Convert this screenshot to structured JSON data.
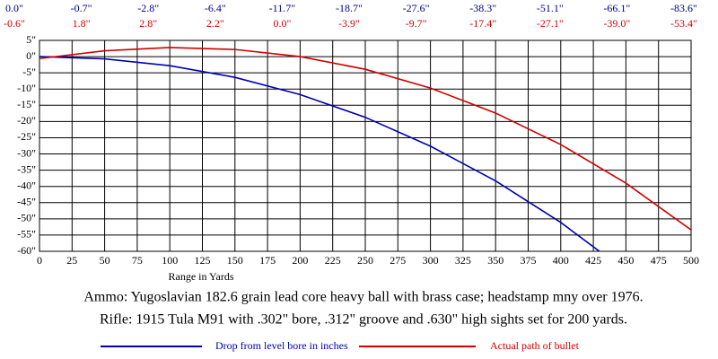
{
  "chart_data": {
    "type": "line",
    "x": [
      0,
      50,
      100,
      150,
      200,
      250,
      300,
      350,
      400,
      450,
      500
    ],
    "series": [
      {
        "name": "Drop from level bore in inches",
        "color": "#0000b0",
        "values": [
          0.0,
          -0.7,
          -2.8,
          -6.4,
          -11.7,
          -18.7,
          -27.6,
          -38.3,
          -51.1,
          -66.1,
          -83.6
        ],
        "value_labels": [
          "0.0\"",
          "-0.7\"",
          "-2.8\"",
          "-6.4\"",
          "-11.7\"",
          "-18.7\"",
          "-27.6\"",
          "-38.3\"",
          "-51.1\"",
          "-66.1\"",
          "-83.6\""
        ]
      },
      {
        "name": "Actual path of bullet",
        "color": "#d00000",
        "values": [
          -0.6,
          1.8,
          2.8,
          2.2,
          0.0,
          -3.9,
          -9.7,
          -17.4,
          -27.1,
          -39.0,
          -53.4
        ],
        "value_labels": [
          "-0.6\"",
          "1.8\"",
          "2.8\"",
          "2.2\"",
          "0.0\"",
          "-3.9\"",
          "-9.7\"",
          "-17.4\"",
          "-27.1\"",
          "-39.0\"",
          "-53.4\""
        ]
      }
    ],
    "xlabel": "Range in Yards",
    "xlim": [
      0,
      500
    ],
    "ylim": [
      -60,
      5
    ],
    "xticks": [
      0,
      25,
      50,
      75,
      100,
      125,
      150,
      175,
      200,
      225,
      250,
      275,
      300,
      325,
      350,
      375,
      400,
      425,
      450,
      475,
      500
    ],
    "yticks": [
      {
        "value": 5,
        "label": "5\""
      },
      {
        "value": 0,
        "label": "0\""
      },
      {
        "value": -5,
        "label": "-5\""
      },
      {
        "value": -10,
        "label": "-10\""
      },
      {
        "value": -15,
        "label": "-15\""
      },
      {
        "value": -20,
        "label": "-20\""
      },
      {
        "value": -25,
        "label": "-25\""
      },
      {
        "value": -30,
        "label": "-30\""
      },
      {
        "value": -35,
        "label": "-35\""
      },
      {
        "value": -40,
        "label": "-40\""
      },
      {
        "value": -45,
        "label": "-45\""
      },
      {
        "value": -50,
        "label": "-50\""
      },
      {
        "value": -55,
        "label": "-55\""
      },
      {
        "value": -60,
        "label": "-60\""
      }
    ],
    "grid": true,
    "annotations": [
      "Ammo:  Yugoslavian 182.6 grain lead core heavy ball with brass case; headstamp mny over 1976.",
      "Rifle:  1915 Tula M91 with .302\" bore, .312\" groove and .630\" high sights set for 200 yards."
    ]
  }
}
